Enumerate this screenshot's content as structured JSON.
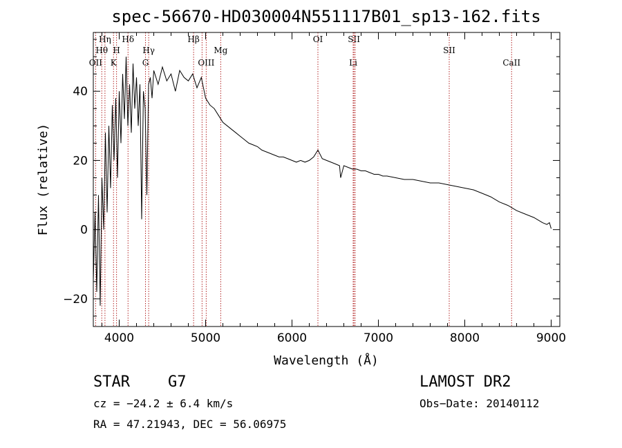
{
  "chart_data": {
    "type": "line",
    "title": "spec-56670-HD030004N551117B01_sp13-162.fits",
    "xlabel": "Wavelength (Å)",
    "ylabel": "Flux (relative)",
    "xlim": [
      3700,
      9100
    ],
    "ylim": [
      -28,
      57
    ],
    "xticks": [
      4000,
      5000,
      6000,
      7000,
      8000,
      9000
    ],
    "yticks": [
      -20,
      0,
      20,
      40
    ],
    "grid": false,
    "series": [
      {
        "x": [
          3700,
          3720,
          3740,
          3760,
          3780,
          3800,
          3820,
          3840,
          3860,
          3880,
          3900,
          3920,
          3940,
          3960,
          3980,
          4000,
          4020,
          4040,
          4060,
          4080,
          4100,
          4120,
          4140,
          4160,
          4180,
          4200,
          4220,
          4240,
          4260,
          4280,
          4300,
          4320,
          4340,
          4360,
          4380,
          4400,
          4450,
          4500,
          4550,
          4600,
          4650,
          4700,
          4750,
          4800,
          4850,
          4900,
          4950,
          5000,
          5050,
          5100,
          5150,
          5200,
          5250,
          5300,
          5350,
          5400,
          5450,
          5500,
          5550,
          5600,
          5650,
          5700,
          5750,
          5800,
          5850,
          5900,
          5950,
          6000,
          6050,
          6100,
          6150,
          6200,
          6250,
          6300,
          6350,
          6400,
          6450,
          6500,
          6550,
          6563,
          6600,
          6650,
          6700,
          6750,
          6800,
          6850,
          6900,
          6950,
          7000,
          7050,
          7100,
          7200,
          7300,
          7400,
          7500,
          7600,
          7700,
          7800,
          7900,
          8000,
          8100,
          8200,
          8300,
          8400,
          8500,
          8600,
          8700,
          8800,
          8900,
          8950,
          8980,
          9000
        ],
        "y": [
          -15,
          5,
          -18,
          10,
          -22,
          15,
          0,
          28,
          5,
          30,
          12,
          36,
          20,
          38,
          15,
          40,
          25,
          45,
          32,
          50,
          30,
          42,
          28,
          48,
          35,
          44,
          30,
          42,
          3,
          40,
          35,
          10,
          42,
          44,
          38,
          46,
          42,
          47,
          43,
          45,
          40,
          46,
          44,
          43,
          45,
          41,
          44,
          38,
          36,
          35,
          33,
          31,
          30,
          29,
          28,
          27,
          26,
          25,
          24.5,
          24,
          23,
          22.5,
          22,
          21.5,
          21,
          21,
          20.5,
          20,
          19.5,
          20,
          19.5,
          20,
          21,
          23,
          20.5,
          20,
          19.5,
          19,
          18.5,
          15,
          18.5,
          18,
          17.5,
          17.5,
          17,
          17,
          16.5,
          16,
          16,
          15.5,
          15.5,
          15,
          14.5,
          14.5,
          14,
          13.5,
          13.5,
          13,
          12.5,
          12,
          11.5,
          10.5,
          9.5,
          8,
          7,
          5.5,
          4.5,
          3.5,
          2,
          1.5,
          2,
          0.3
        ]
      }
    ],
    "line_markers": [
      {
        "wavelength": 3727,
        "label": "OII",
        "row": 3
      },
      {
        "wavelength": 3798,
        "label": "Hθ",
        "row": 2
      },
      {
        "wavelength": 3835,
        "label": "Hη",
        "row": 1
      },
      {
        "wavelength": 3934,
        "label": "K",
        "row": 3
      },
      {
        "wavelength": 3969,
        "label": "H",
        "row": 2
      },
      {
        "wavelength": 4102,
        "label": "Hδ",
        "row": 1
      },
      {
        "wavelength": 4304,
        "label": "G",
        "row": 3
      },
      {
        "wavelength": 4341,
        "label": "Hγ",
        "row": 2
      },
      {
        "wavelength": 4861,
        "label": "Hβ",
        "row": 1
      },
      {
        "wavelength": 4959,
        "label": "",
        "row": 3
      },
      {
        "wavelength": 5007,
        "label": "OIII",
        "row": 3
      },
      {
        "wavelength": 5175,
        "label": "Mg",
        "row": 2
      },
      {
        "wavelength": 6300,
        "label": "OI",
        "row": 1
      },
      {
        "wavelength": 6708,
        "label": "Li",
        "row": 3
      },
      {
        "wavelength": 6717,
        "label": "SII",
        "row": 1
      },
      {
        "wavelength": 6731,
        "label": "",
        "row": 1
      },
      {
        "wavelength": 7820,
        "label": "SII",
        "row": 2
      },
      {
        "wavelength": 8542,
        "label": "CaII",
        "row": 3
      }
    ],
    "marker_color": "#b22222",
    "line_color": "#000000"
  },
  "info": {
    "object_type": "STAR",
    "subclass": "G7",
    "survey": "LAMOST DR2",
    "cz": "cz = −24.2 ± 6.4 km/s",
    "obs_date": "Obs−Date: 20140112",
    "coords": "RA =  47.21943, DEC =  56.06975"
  }
}
